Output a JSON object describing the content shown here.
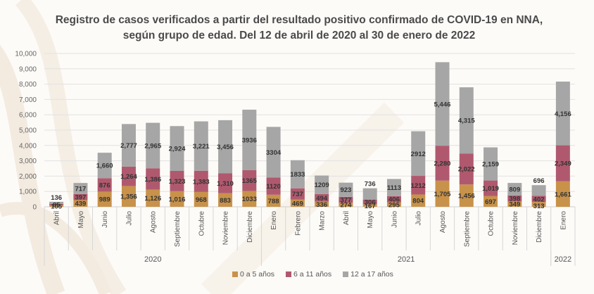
{
  "chart_data": {
    "type": "bar",
    "stacked": true,
    "title": "Registro de casos verificados a partir del resultado positivo confirmado de COVID-19 en NNA, según grupo de edad. Del 12 de abril de 2020 al 30 de enero de 2022",
    "xlabel": "",
    "ylabel": "",
    "ylim": [
      0,
      10000
    ],
    "yticks": [
      "0",
      "1,000",
      "2,000",
      "3,000",
      "4,000",
      "5,000",
      "6,000",
      "7,000",
      "8,000",
      "9,000",
      "10,000"
    ],
    "grid": true,
    "legend_position": "bottom",
    "categories": [
      "Abril",
      "Mayo",
      "Junio",
      "Julio",
      "Agosto",
      "Septiembre",
      "Octubre",
      "Noviembre",
      "Diciembre",
      "Enero",
      "Febrero",
      "Marzo",
      "Abril",
      "Mayo",
      "Junio",
      "Julio",
      "Agosto",
      "Septiembre",
      "Octubre",
      "Noviembre",
      "Diciembre",
      "Enero"
    ],
    "category_groups": [
      {
        "label": "2020",
        "count": 9
      },
      {
        "label": "2021",
        "count": 12
      },
      {
        "label": "2022",
        "count": 1
      }
    ],
    "series": [
      {
        "name": "0 a 5 años",
        "color": "#c8924a",
        "values": [
          105,
          439,
          989,
          1356,
          1126,
          1016,
          968,
          883,
          1033,
          788,
          469,
          336,
          274,
          167,
          295,
          804,
          1705,
          1456,
          697,
          349,
          313,
          1661
        ],
        "labels": [
          "105",
          "439",
          "989",
          "1,356",
          "1,126",
          "1,016",
          "968",
          "883",
          "1033",
          "788",
          "469",
          "336",
          "274",
          "167",
          "295",
          "804",
          "1,705",
          "1,456",
          "697",
          "349",
          "313",
          "1,661"
        ]
      },
      {
        "name": "6 a 11 años",
        "color": "#b0596e",
        "values": [
          85,
          397,
          876,
          1264,
          1386,
          1323,
          1383,
          1310,
          1365,
          1120,
          737,
          494,
          377,
          306,
          406,
          1212,
          2280,
          2022,
          1019,
          398,
          402,
          2349
        ],
        "labels": [
          "85",
          "397",
          "876",
          "1,264",
          "1,386",
          "1,323",
          "1,383",
          "1,310",
          "1365",
          "1120",
          "737",
          "494",
          "377",
          "306",
          "406",
          "1212",
          "2,280",
          "2,022",
          "1,019",
          "398",
          "402",
          "2,349"
        ]
      },
      {
        "name": "12 a 17  años",
        "color": "#a6a6a6",
        "values": [
          136,
          717,
          1660,
          2777,
          2965,
          2924,
          3221,
          3456,
          3936,
          3304,
          1833,
          1209,
          923,
          736,
          1113,
          2912,
          5446,
          4315,
          2159,
          809,
          696,
          4156
        ],
        "labels": [
          "136",
          "717",
          "1,660",
          "2,777",
          "2,965",
          "2,924",
          "3,221",
          "3,456",
          "3936",
          "3304",
          "1833",
          "1209",
          "923",
          "736",
          "1113",
          "2912",
          "5,446",
          "4,315",
          "2,159",
          "809",
          "696",
          "4,156"
        ]
      }
    ]
  }
}
